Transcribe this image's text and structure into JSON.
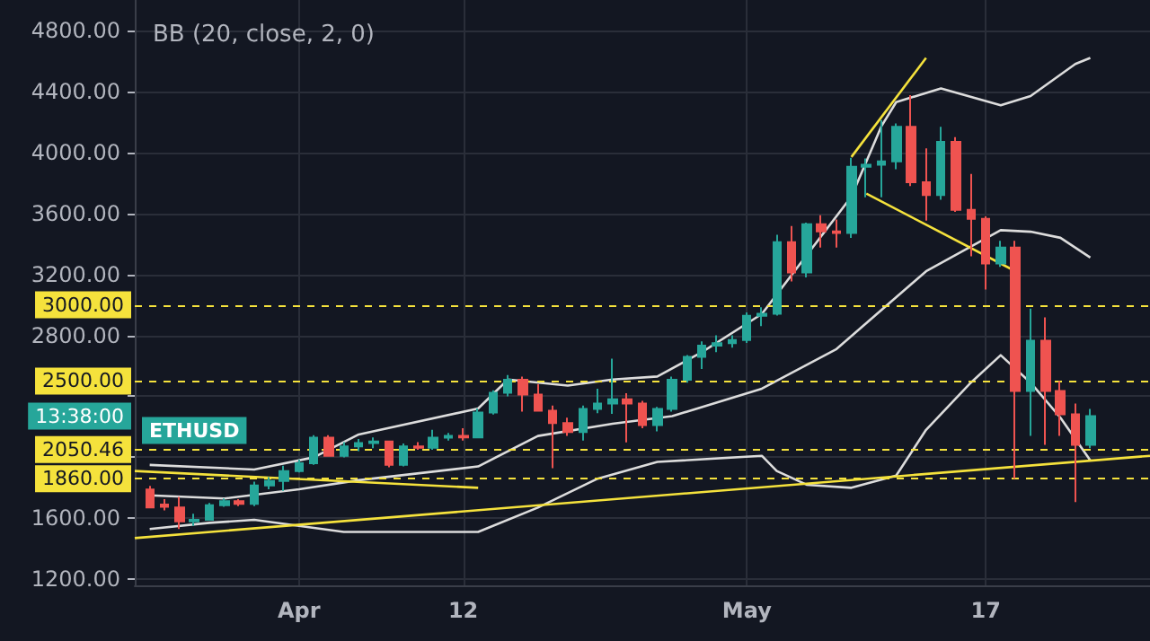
{
  "chart_data": {
    "type": "candlestick",
    "title": "BB (20, close, 2, 0)",
    "x": [
      "--03-22",
      "--03-23",
      "--03-24",
      "--03-25",
      "--03-26",
      "--03-27",
      "--03-28",
      "--03-29",
      "--03-30",
      "--03-31",
      "--04-01",
      "--04-02",
      "--04-03",
      "--04-04",
      "--04-05",
      "--04-06",
      "--04-07",
      "--04-08",
      "--04-09",
      "--04-10",
      "--04-11",
      "--04-12",
      "--04-13",
      "--04-14",
      "--04-15",
      "--04-16",
      "--04-17",
      "--04-18",
      "--04-19",
      "--04-20",
      "--04-21",
      "--04-22",
      "--04-23",
      "--04-24",
      "--04-25",
      "--04-26",
      "--04-27",
      "--04-28",
      "--04-29",
      "--04-30",
      "--05-01",
      "--05-02",
      "--05-03",
      "--05-04",
      "--05-05",
      "--05-06",
      "--05-07",
      "--05-08",
      "--05-09",
      "--05-10",
      "--05-11",
      "--05-12",
      "--05-13",
      "--05-14",
      "--05-15",
      "--05-16",
      "--05-17",
      "--05-18",
      "--05-19",
      "--05-20",
      "--05-21",
      "--05-22",
      "--05-23",
      "--05-24"
    ],
    "ohlc": [
      [
        1788,
        1812,
        1669,
        1671
      ],
      [
        1690,
        1725,
        1652,
        1675
      ],
      [
        1671,
        1740,
        1530,
        1580
      ],
      [
        1580,
        1630,
        1550,
        1590
      ],
      [
        1590,
        1700,
        1585,
        1686
      ],
      [
        1686,
        1730,
        1675,
        1712
      ],
      [
        1712,
        1725,
        1680,
        1695
      ],
      [
        1695,
        1840,
        1680,
        1815
      ],
      [
        1815,
        1870,
        1790,
        1845
      ],
      [
        1845,
        1945,
        1780,
        1910
      ],
      [
        1910,
        1985,
        1900,
        1961
      ],
      [
        1961,
        2145,
        1950,
        2129
      ],
      [
        2129,
        2145,
        2010,
        2010
      ],
      [
        2010,
        2100,
        2000,
        2071
      ],
      [
        2071,
        2120,
        2040,
        2094
      ],
      [
        2094,
        2130,
        2060,
        2104
      ],
      [
        2104,
        2110,
        1935,
        1950
      ],
      [
        1950,
        2090,
        1940,
        2071
      ],
      [
        2071,
        2100,
        2050,
        2062
      ],
      [
        2062,
        2180,
        2050,
        2129
      ],
      [
        2129,
        2160,
        2110,
        2140
      ],
      [
        2140,
        2190,
        2110,
        2130
      ],
      [
        2130,
        2320,
        2125,
        2294
      ],
      [
        2294,
        2440,
        2280,
        2424
      ],
      [
        2424,
        2540,
        2400,
        2509
      ],
      [
        2509,
        2530,
        2300,
        2412
      ],
      [
        2412,
        2480,
        2300,
        2306
      ],
      [
        2306,
        2340,
        1929,
        2224
      ],
      [
        2224,
        2260,
        2140,
        2165
      ],
      [
        2165,
        2340,
        2110,
        2318
      ],
      [
        2318,
        2450,
        2290,
        2353
      ],
      [
        2353,
        2647,
        2285,
        2380
      ],
      [
        2380,
        2420,
        2098,
        2353
      ],
      [
        2353,
        2370,
        2190,
        2212
      ],
      [
        2212,
        2330,
        2170,
        2318
      ],
      [
        2318,
        2530,
        2300,
        2509
      ],
      [
        2509,
        2670,
        2490,
        2659
      ],
      [
        2659,
        2760,
        2580,
        2733
      ],
      [
        2733,
        2800,
        2690,
        2748
      ],
      [
        2748,
        2800,
        2720,
        2770
      ],
      [
        2770,
        2950,
        2750,
        2929
      ],
      [
        2929,
        2985,
        2860,
        2941
      ],
      [
        2941,
        3460,
        2930,
        3412
      ],
      [
        3412,
        3518,
        3153,
        3212
      ],
      [
        3212,
        3540,
        3180,
        3529
      ],
      [
        3529,
        3588,
        3376,
        3482
      ],
      [
        3482,
        3560,
        3376,
        3471
      ],
      [
        3471,
        3965,
        3440,
        3906
      ],
      [
        3906,
        3960,
        3706,
        3920
      ],
      [
        3920,
        4212,
        3706,
        3941
      ],
      [
        3941,
        4190,
        3890,
        4168
      ],
      [
        4168,
        4376,
        3780,
        3804
      ],
      [
        3804,
        4027,
        3553,
        3720
      ],
      [
        3720,
        4168,
        3690,
        4070
      ],
      [
        4070,
        4100,
        3610,
        3624
      ],
      [
        3624,
        3859,
        3318,
        3565
      ],
      [
        3565,
        3580,
        3100,
        3271
      ],
      [
        3271,
        3420,
        3250,
        3376
      ],
      [
        3376,
        3420,
        1859,
        2435
      ],
      [
        2435,
        2976,
        2141,
        2765
      ],
      [
        2765,
        2918,
        2082,
        2435
      ],
      [
        2435,
        2500,
        2141,
        2282
      ],
      [
        2282,
        2353,
        1706,
        2082
      ],
      [
        2082,
        2318,
        2060,
        2270
      ]
    ],
    "colors": [
      "#ef5350",
      "#ef5350",
      "#ef5350",
      "#26a69a",
      "#26a69a",
      "#26a69a",
      "#ef5350",
      "#26a69a",
      "#26a69a",
      "#26a69a",
      "#26a69a",
      "#26a69a",
      "#ef5350",
      "#26a69a",
      "#26a69a",
      "#26a69a",
      "#ef5350",
      "#26a69a",
      "#ef5350",
      "#26a69a",
      "#26a69a",
      "#ef5350",
      "#26a69a",
      "#26a69a",
      "#26a69a",
      "#ef5350",
      "#ef5350",
      "#ef5350",
      "#ef5350",
      "#26a69a",
      "#26a69a",
      "#26a69a",
      "#ef5350",
      "#ef5350",
      "#26a69a",
      "#26a69a",
      "#26a69a",
      "#26a69a",
      "#26a69a",
      "#26a69a",
      "#26a69a",
      "#26a69a",
      "#26a69a",
      "#ef5350",
      "#26a69a",
      "#ef5350",
      "#ef5350",
      "#26a69a",
      "#26a69a",
      "#26a69a",
      "#26a69a",
      "#ef5350",
      "#ef5350",
      "#26a69a",
      "#ef5350",
      "#ef5350",
      "#ef5350",
      "#26a69a",
      "#ef5350",
      "#26a69a",
      "#ef5350",
      "#ef5350",
      "#ef5350",
      "#26a69a"
    ],
    "series": [
      {
        "type": "line",
        "color": "#dcdcdc",
        "x": [
          "--03-22",
          "--03-29",
          "--04-02",
          "--04-05",
          "--04-13",
          "--04-15",
          "--04-19",
          "--04-22",
          "--04-25",
          "--04-28",
          "--05-02",
          "--05-08",
          "--05-10",
          "--05-11",
          "--05-14",
          "--05-18",
          "--05-20",
          "--05-23",
          "--05-24"
        ],
        "values": [
          1950,
          1920,
          2000,
          2150,
          2320,
          2510,
          2470,
          2510,
          2530,
          2690,
          2940,
          3710,
          4170,
          4330,
          4420,
          4310,
          4370,
          4580,
          4620
        ]
      },
      {
        "type": "line",
        "color": "#dcdcdc",
        "x": [
          "--03-22",
          "--03-27",
          "--04-01",
          "--04-05",
          "--04-13",
          "--04-17",
          "--04-22",
          "--04-26",
          "--05-02",
          "--05-07",
          "--05-13",
          "--05-18",
          "--05-20",
          "--05-22",
          "--05-24"
        ],
        "values": [
          1750,
          1730,
          1790,
          1850,
          1940,
          2140,
          2220,
          2270,
          2450,
          2710,
          3220,
          3490,
          3480,
          3440,
          3310
        ]
      },
      {
        "type": "line",
        "color": "#dcdcdc",
        "x": [
          "--03-22",
          "--03-26",
          "--03-29",
          "--04-01",
          "--04-04",
          "--04-13",
          "--04-17",
          "--04-21",
          "--04-25",
          "--05-02",
          "--05-03",
          "--05-05",
          "--05-08",
          "--05-11",
          "--05-13",
          "--05-16",
          "--05-18",
          "--05-20",
          "--05-22",
          "--05-24"
        ],
        "values": [
          1530,
          1570,
          1590,
          1550,
          1510,
          1510,
          1670,
          1860,
          1970,
          2010,
          1910,
          1820,
          1800,
          1880,
          2180,
          2490,
          2670,
          2490,
          2260,
          1980
        ]
      },
      {
        "type": "line",
        "color": "#f5e23c",
        "x": [
          "--03-21",
          "--05-28"
        ],
        "values": [
          1470,
          2010
        ]
      },
      {
        "type": "line",
        "color": "#f5e23c",
        "x": [
          "--03-21",
          "--04-13"
        ],
        "values": [
          1910,
          1800
        ]
      },
      {
        "type": "line",
        "color": "#f5e23c",
        "x": [
          "--05-08",
          "--05-13"
        ],
        "values": [
          3970,
          4620
        ]
      },
      {
        "type": "line",
        "color": "#f5e23c",
        "x": [
          "--05-09",
          "--05-19"
        ],
        "values": [
          3730,
          3220
        ]
      }
    ],
    "xlim": [
      "--03-21",
      "--05-28"
    ],
    "xticks": [
      {
        "value": "--04-01",
        "label": "Apr"
      },
      {
        "value": "--04-12",
        "label": "12"
      },
      {
        "value": "--05-01",
        "label": "May"
      },
      {
        "value": "--05-17",
        "label": "17"
      }
    ],
    "ylim": [
      1160,
      5000
    ],
    "yticks": [
      {
        "value": 1200,
        "label": "1200.00"
      },
      {
        "value": 1600,
        "label": "1600.00"
      },
      {
        "value": 2000,
        "label": null
      },
      {
        "value": 2400,
        "label": null
      },
      {
        "value": 2800,
        "label": "2800.00"
      },
      {
        "value": 3200,
        "label": "3200.00"
      },
      {
        "value": 3600,
        "label": "3600.00"
      },
      {
        "value": 4000,
        "label": "4000.00"
      },
      {
        "value": 4400,
        "label": "4400.00"
      },
      {
        "value": 4800,
        "label": "4800.00"
      }
    ],
    "ref_lines": [
      {
        "axis": "y",
        "value": 3000,
        "label": "3000.00",
        "color": "#f5e23c",
        "line_style": "dashed"
      },
      {
        "axis": "y",
        "value": 2500,
        "label": "2500.00",
        "color": "#f5e23c",
        "line_style": "dashed"
      },
      {
        "axis": "y",
        "value": 2050.46,
        "label": "2050.46",
        "color": "#f5e23c",
        "line_style": "dashed"
      },
      {
        "axis": "y",
        "value": 1860,
        "label": "1860.00",
        "color": "#f5e23c",
        "line_style": "dashed"
      }
    ],
    "annotations": [
      "13:38:00",
      "ETHUSD"
    ],
    "grid": true
  }
}
